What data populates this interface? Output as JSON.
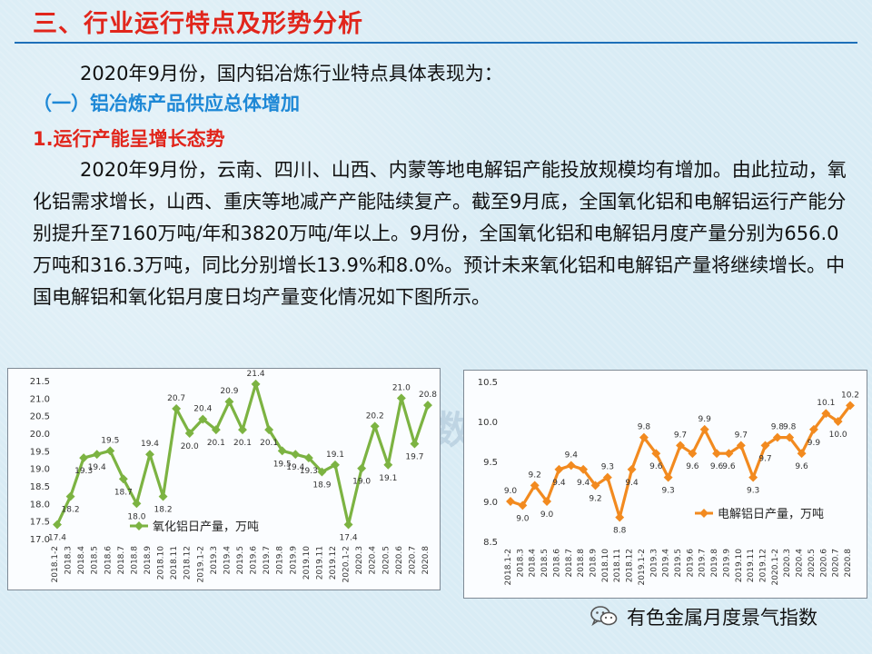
{
  "heading": "三、行业运行特点及形势分析",
  "intro": "2020年9月份，国内铝冶炼行业特点具体表现为：",
  "subheading1": "（一）铝冶炼产品供应总体增加",
  "subheading2": "1.运行产能呈增长态势",
  "paragraph": "2020年9月份，云南、四川、山西、内蒙等地电解铝产能投放规模均有增加。由此拉动，氧化铝需求增长，山西、重庆等地减产产能陆续复产。截至9月底，全国氧化铝和电解铝运行产能分别提升至7160万吨/年和3820万吨/年以上。9月份，全国氧化铝和电解铝月度产量分别为656.0万吨和316.3万吨，同比分别增长13.9%和8.0%。预计未来氧化铝和电解铝产量将继续增长。中国电解铝和氧化铝月度日均产量变化情况如下图所示。",
  "watermark": "有色指数",
  "footer": {
    "text": "有色金属月度景气指数",
    "icon": "wechat-icon"
  },
  "chart_data": [
    {
      "type": "line",
      "categories": [
        "2018.1-2",
        "2018.3",
        "2018.4",
        "2018.5",
        "2018.6",
        "2018.7",
        "2018.8",
        "2018.9",
        "2018.10",
        "2018.11",
        "2018.12",
        "2019.1-2",
        "2019.3",
        "2019.4",
        "2019.5",
        "2019.6",
        "2019.7",
        "2019.8",
        "2019.9",
        "2019.10",
        "2019.11",
        "2019.12",
        "2020.1-2",
        "2020.3",
        "2020.4",
        "2020.5",
        "2020.6",
        "2020.7",
        "2020.8"
      ],
      "tick_labels": [
        "2018.1-2",
        "2018.3",
        "2018.4",
        "2018.5",
        "2018.6",
        "2018.7",
        "2018.8",
        "2018.9",
        "2018.10",
        "2018.11",
        "2018.12",
        "2019.1-2",
        "2019.3",
        "2019.4",
        "2019.5",
        "2019.6",
        "2019.7",
        "2019.8",
        "2019.9",
        "2019.10",
        "2019.11",
        "2019.12",
        "2020.1-2",
        "2020.3",
        "2020.4",
        "2020.5",
        "2020.6",
        "2020.7",
        "2020.8"
      ],
      "series": [
        {
          "name": "氧化铝日产量，万吨",
          "color": "#7cb342",
          "values": [
            17.4,
            18.2,
            19.3,
            19.4,
            19.5,
            18.7,
            18.0,
            19.4,
            18.2,
            20.7,
            20.0,
            20.4,
            20.1,
            20.9,
            20.1,
            21.4,
            20.1,
            19.5,
            19.4,
            19.3,
            18.9,
            19.1,
            17.4,
            19.0,
            20.2,
            19.1,
            21.0,
            19.7,
            20.8
          ],
          "labels": [
            "17.4",
            "18.2",
            "19.3",
            "19.4",
            "19.5",
            "18.7",
            "18.0",
            "19.4",
            "18.2",
            "20.7",
            "20.0",
            "20.4",
            "20.1",
            "20.9",
            "20.1",
            "21.4",
            "20.1",
            "19.5",
            "19.4",
            "19.3",
            "18.9",
            "19.1",
            "17.4",
            "19.0",
            "20.2",
            "19.1",
            "21.0",
            "19.7",
            "20.8"
          ]
        }
      ],
      "ylim": [
        17.0,
        21.5
      ],
      "yticks": [
        "17.0",
        "17.5",
        "18.0",
        "18.5",
        "19.0",
        "19.5",
        "20.0",
        "20.5",
        "21.0",
        "21.5"
      ],
      "grid": false,
      "legend": "bottom-center"
    },
    {
      "type": "line",
      "categories": [
        "2018.1-2",
        "2018.3",
        "2018.4",
        "2018.5",
        "2018.6",
        "2018.7",
        "2018.8",
        "2018.9",
        "2018.10",
        "2018.11",
        "2018.12",
        "2019.1-2",
        "2019.3",
        "2019.4",
        "2019.5",
        "2019.6",
        "2019.7",
        "2019.8",
        "2019.9",
        "2019.10",
        "2019.11",
        "2019.12",
        "2020.1-2",
        "2020.3",
        "2020.4",
        "2020.5",
        "2020.6",
        "2020.7",
        "2020.8"
      ],
      "tick_labels": [
        "2018.1-2",
        "2018.3",
        "2018.4",
        "2018.5",
        "2018.6",
        "2018.7",
        "2018.8",
        "2018.9",
        "2018.10",
        "2018.11",
        "2018.12",
        "2019.1-2",
        "2019.3",
        "2019.4",
        "2019.5",
        "2019.6",
        "2019.7",
        "2019.8",
        "2019.9",
        "2019.10",
        "2019.11",
        "2019.12",
        "2020.1-2",
        "2020.3",
        "2020.4",
        "2020.5",
        "2020.6",
        "2020.7",
        "2020.8"
      ],
      "series": [
        {
          "name": "电解铝日产量，万吨",
          "color": "#f28a1f",
          "values": [
            9.0,
            8.95,
            9.2,
            9.0,
            9.4,
            9.45,
            9.4,
            9.2,
            9.3,
            8.8,
            9.4,
            9.8,
            9.6,
            9.3,
            9.7,
            9.6,
            9.9,
            9.6,
            9.6,
            9.7,
            9.3,
            9.7,
            9.8,
            9.8,
            9.6,
            9.9,
            10.1,
            10.0,
            10.2
          ],
          "labels": [
            "9.0",
            "9.0",
            "9.2",
            "9.0",
            "9.4",
            "9.4",
            "9.4",
            "9.2",
            "9.3",
            "8.8",
            "9.4",
            "9.8",
            "9.6",
            "9.3",
            "9.7",
            "9.6",
            "9.9",
            "9.6",
            "9.6",
            "9.7",
            "9.3",
            "9.7",
            "9.8",
            "9.8",
            "9.6",
            "9.9",
            "10.1",
            "10.0",
            "10.2"
          ]
        }
      ],
      "ylim": [
        8.5,
        10.5
      ],
      "yticks": [
        "8.5",
        "9.0",
        "9.5",
        "10.0",
        "10.5"
      ],
      "grid": false,
      "legend": "bottom-right"
    }
  ]
}
